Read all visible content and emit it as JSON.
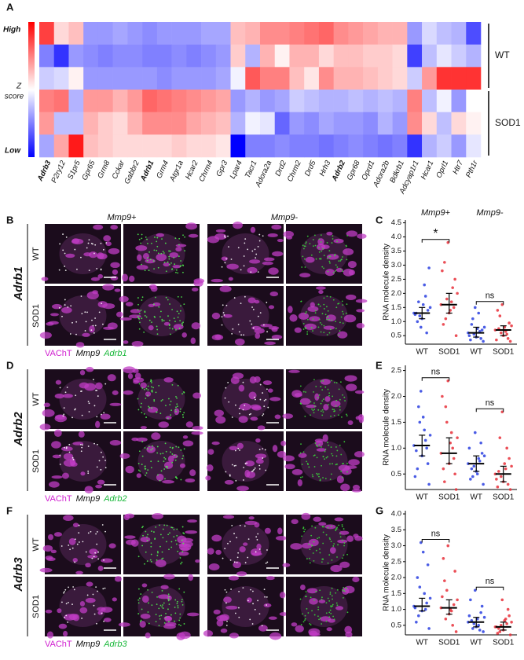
{
  "chart_data": [
    {
      "type": "heatmap",
      "panel": "A",
      "colorbar_labels": [
        "High",
        "Z",
        "score",
        "Low"
      ],
      "row_groups": [
        "WT",
        "SOD1"
      ],
      "colormap": [
        "#0000ff",
        "#ffffff",
        "#ff0000"
      ],
      "zlim": [
        -2,
        2
      ],
      "bold": [
        0,
        7,
        20
      ],
      "categories": [
        "Adrb3",
        "P2ry12",
        "S1pr5",
        "Gpr65",
        "Grm8",
        "Cckar",
        "Gabbr2",
        "Adrb1",
        "Grm4",
        "Atgr1a",
        "Hcar2",
        "Chrm4",
        "Gpr3",
        "Lpar4",
        "Tacr1",
        "Adora2a",
        "Drd2",
        "Chrm2",
        "Drd5",
        "Hrh3",
        "Adrb2",
        "Gpr68",
        "Oprd1",
        "Adora2b",
        "Bdkrb1",
        "Adcyap1r1",
        "Hcar1",
        "Oprl1",
        "Htr7",
        "Pth1r"
      ],
      "z": [
        [
          1.5,
          0.3,
          0.5,
          -0.8,
          -0.8,
          -0.7,
          -0.8,
          -0.9,
          -0.8,
          -0.8,
          -0.8,
          -0.7,
          -0.7,
          0.5,
          0.6,
          0.9,
          0.9,
          1.0,
          1.1,
          1.2,
          0.9,
          0.8,
          0.7,
          0.6,
          0.6,
          -0.8,
          -0.3,
          -0.5,
          -0.6,
          -1.4
        ],
        [
          -1.0,
          -1.6,
          -0.8,
          -0.9,
          -1.0,
          -0.9,
          -0.9,
          -1.0,
          -1.0,
          -0.9,
          -1.0,
          -0.9,
          -0.8,
          0.4,
          -0.6,
          0.6,
          0.1,
          0.6,
          0.6,
          0.3,
          0.5,
          0.5,
          0.4,
          0.4,
          0.3,
          -1.5,
          -0.5,
          -0.2,
          -0.4,
          -0.6
        ],
        [
          -0.4,
          -0.3,
          0.1,
          -0.8,
          -0.8,
          -0.8,
          -0.8,
          -0.8,
          -0.9,
          -0.8,
          -0.8,
          -0.8,
          -0.7,
          -0.1,
          1.3,
          1.0,
          1.0,
          0.5,
          0.2,
          0.9,
          0.6,
          0.6,
          0.5,
          0.4,
          0.3,
          -0.4,
          0.8,
          1.6,
          1.6,
          1.6
        ],
        [
          1.0,
          1.1,
          -0.6,
          0.8,
          0.8,
          0.6,
          0.8,
          1.2,
          1.1,
          1.0,
          0.9,
          0.8,
          0.7,
          -0.8,
          -0.6,
          -0.8,
          -0.7,
          -0.4,
          -0.5,
          -0.6,
          -0.6,
          -0.5,
          -0.6,
          -0.5,
          -0.6,
          1.0,
          -0.5,
          -0.1,
          -0.8,
          0.0
        ],
        [
          0.8,
          -0.5,
          -0.5,
          0.6,
          0.4,
          0.3,
          0.6,
          0.9,
          0.9,
          0.9,
          0.7,
          0.6,
          0.5,
          -0.6,
          -0.1,
          -0.2,
          -1.2,
          -0.8,
          -0.9,
          -0.7,
          -0.8,
          -0.8,
          -0.9,
          -0.6,
          -0.8,
          0.9,
          0.3,
          -0.5,
          0.3,
          0.1
        ],
        [
          -0.7,
          0.7,
          1.8,
          0.5,
          0.4,
          0.3,
          0.3,
          0.3,
          0.3,
          0.4,
          0.3,
          0.3,
          0.2,
          -2.0,
          -1.0,
          -1.0,
          -0.9,
          -1.0,
          -1.0,
          -1.1,
          -1.0,
          -0.9,
          -1.0,
          -1.1,
          -1.0,
          -1.6,
          -0.6,
          -0.4,
          -0.8,
          -0.2
        ]
      ]
    },
    {
      "type": "strip",
      "panel": "C",
      "headers": [
        "Mmp9+",
        "Mmp9-"
      ],
      "y_label": "RNA molecule density",
      "categories": [
        "WT",
        "SOD1",
        "WT",
        "SOD1"
      ],
      "ylim": [
        0.2,
        4.6
      ],
      "yticks": [
        0.5,
        {
          "value": 1,
          "label": "1.0"
        },
        1.5,
        {
          "value": 2,
          "label": "2.0"
        },
        2.5,
        {
          "value": 3,
          "label": "3.0"
        },
        3.5,
        {
          "value": 4,
          "label": "4.0"
        },
        4.5
      ],
      "groups": [
        {
          "color": "#2a3fe0",
          "median": 1.3,
          "q1": 1.1,
          "q3": 1.5,
          "values": [
            1.3,
            1.1,
            1.5,
            0.8,
            2.9,
            1.2,
            1.4,
            1.7,
            0.6,
            1.0,
            1.9,
            1.3,
            2.3,
            1.25,
            1.6
          ]
        },
        {
          "color": "#e8303a",
          "median": 1.6,
          "q1": 1.3,
          "q3": 2.0,
          "values": [
            1.6,
            1.3,
            2.0,
            3.8,
            0.5,
            1.8,
            2.5,
            1.1,
            1.5,
            3.1,
            2.2,
            0.9,
            1.7,
            2.8,
            1.4
          ]
        },
        {
          "color": "#2a3fe0",
          "median": 0.6,
          "q1": 0.45,
          "q3": 0.8,
          "values": [
            0.6,
            0.45,
            0.8,
            1.5,
            0.3,
            0.55,
            0.7,
            1.1,
            0.4,
            0.9,
            0.65,
            0.35,
            1.3,
            0.5,
            0.75
          ]
        },
        {
          "color": "#e8303a",
          "median": 0.7,
          "q1": 0.5,
          "q3": 0.85,
          "values": [
            0.7,
            0.5,
            0.85,
            1.6,
            0.3,
            0.6,
            0.95,
            1.2,
            0.4,
            0.75,
            0.55,
            1.4,
            0.65,
            0.35,
            0.8
          ]
        }
      ],
      "annotations": [
        {
          "text": "*",
          "groups": [
            0,
            1
          ]
        },
        {
          "text": "ns",
          "groups": [
            2,
            3
          ]
        }
      ]
    },
    {
      "type": "strip",
      "panel": "E",
      "y_label": "RNA molecule density",
      "categories": [
        "WT",
        "SOD1",
        "WT",
        "SOD1"
      ],
      "ylim": [
        0.2,
        2.6
      ],
      "yticks": [
        0.5,
        {
          "value": 1,
          "label": "1.0"
        },
        1.5,
        {
          "value": 2,
          "label": "2.0"
        },
        2.5
      ],
      "groups": [
        {
          "color": "#2a3fe0",
          "median": 1.05,
          "q1": 0.85,
          "q3": 1.25,
          "values": [
            1.05,
            0.85,
            1.25,
            2.1,
            0.3,
            1.5,
            0.7,
            1.8,
            1.0,
            0.6,
            1.15,
            0.95,
            1.35,
            0.45,
            1.6
          ]
        },
        {
          "color": "#e8303a",
          "median": 0.9,
          "q1": 0.7,
          "q3": 1.2,
          "values": [
            0.9,
            0.7,
            1.2,
            2.3,
            0.2,
            1.5,
            0.5,
            1.8,
            0.8,
            0.35,
            1.0,
            0.6,
            1.3,
            2.0,
            1.1
          ]
        },
        {
          "color": "#2a3fe0",
          "median": 0.7,
          "q1": 0.55,
          "q3": 0.85,
          "values": [
            0.7,
            0.55,
            0.85,
            1.3,
            0.3,
            0.65,
            0.9,
            0.45,
            1.1,
            0.6,
            0.75,
            0.4,
            0.8,
            1.0,
            0.5
          ]
        },
        {
          "color": "#e8303a",
          "median": 0.5,
          "q1": 0.35,
          "q3": 0.65,
          "values": [
            0.5,
            0.35,
            0.65,
            1.7,
            0.2,
            0.45,
            0.8,
            1.2,
            0.3,
            0.55,
            1.0,
            0.25,
            0.6,
            0.4,
            0.7
          ]
        }
      ],
      "annotations": [
        {
          "text": "ns",
          "groups": [
            0,
            1
          ]
        },
        {
          "text": "ns",
          "groups": [
            2,
            3
          ]
        }
      ]
    },
    {
      "type": "strip",
      "panel": "G",
      "y_label": "RNA molecule density",
      "categories": [
        "WT",
        "SOD1",
        "WT",
        "SOD1"
      ],
      "ylim": [
        0.2,
        4.1
      ],
      "yticks": [
        0.5,
        {
          "value": 1,
          "label": "1.0"
        },
        1.5,
        {
          "value": 2,
          "label": "2.0"
        },
        2.5,
        {
          "value": 3,
          "label": "3.0"
        },
        3.5,
        {
          "value": 4,
          "label": "4.0"
        }
      ],
      "groups": [
        {
          "color": "#2a3fe0",
          "median": 1.1,
          "q1": 0.95,
          "q3": 1.35,
          "values": [
            1.1,
            0.95,
            1.35,
            3.1,
            0.4,
            1.7,
            2.4,
            0.8,
            1.2,
            2.0,
            1.0,
            0.6,
            1.5,
            1.05,
            2.8
          ]
        },
        {
          "color": "#e8303a",
          "median": 1.05,
          "q1": 0.85,
          "q3": 1.3,
          "values": [
            1.05,
            0.85,
            1.3,
            3.0,
            0.3,
            1.6,
            2.2,
            0.7,
            1.15,
            1.9,
            0.5,
            2.6,
            0.95,
            1.4,
            1.0
          ]
        },
        {
          "color": "#2a3fe0",
          "median": 0.6,
          "q1": 0.45,
          "q3": 0.75,
          "values": [
            0.6,
            0.45,
            0.75,
            1.6,
            0.3,
            0.55,
            1.1,
            0.4,
            0.9,
            0.65,
            0.35,
            1.3,
            0.5,
            0.8,
            0.7
          ]
        },
        {
          "color": "#e8303a",
          "median": 0.45,
          "q1": 0.35,
          "q3": 0.6,
          "values": [
            0.45,
            0.35,
            0.6,
            1.3,
            0.2,
            0.5,
            0.8,
            0.3,
            1.0,
            0.4,
            0.55,
            0.25,
            0.7,
            0.45,
            0.65
          ]
        }
      ],
      "annotations": [
        {
          "text": "ns",
          "groups": [
            0,
            1
          ]
        },
        {
          "text": "ns",
          "groups": [
            2,
            3
          ]
        }
      ]
    }
  ],
  "image_panels": [
    {
      "letter": "B",
      "gene": "Adrb1",
      "columns": [
        "Mmp9+",
        "Mmp9-"
      ],
      "rows": [
        "WT",
        "SOD1"
      ],
      "legend": [
        "VAChT",
        "Mmp9",
        "Adrb1"
      ]
    },
    {
      "letter": "D",
      "gene": "Adrb2",
      "rows": [
        "WT",
        "SOD1"
      ],
      "legend": [
        "VAChT",
        "Mmp9",
        "Adrb2"
      ]
    },
    {
      "letter": "F",
      "gene": "Adrb3",
      "rows": [
        "WT",
        "SOD1"
      ],
      "legend": [
        "VAChT",
        "Mmp9",
        "Adrb3"
      ]
    }
  ]
}
